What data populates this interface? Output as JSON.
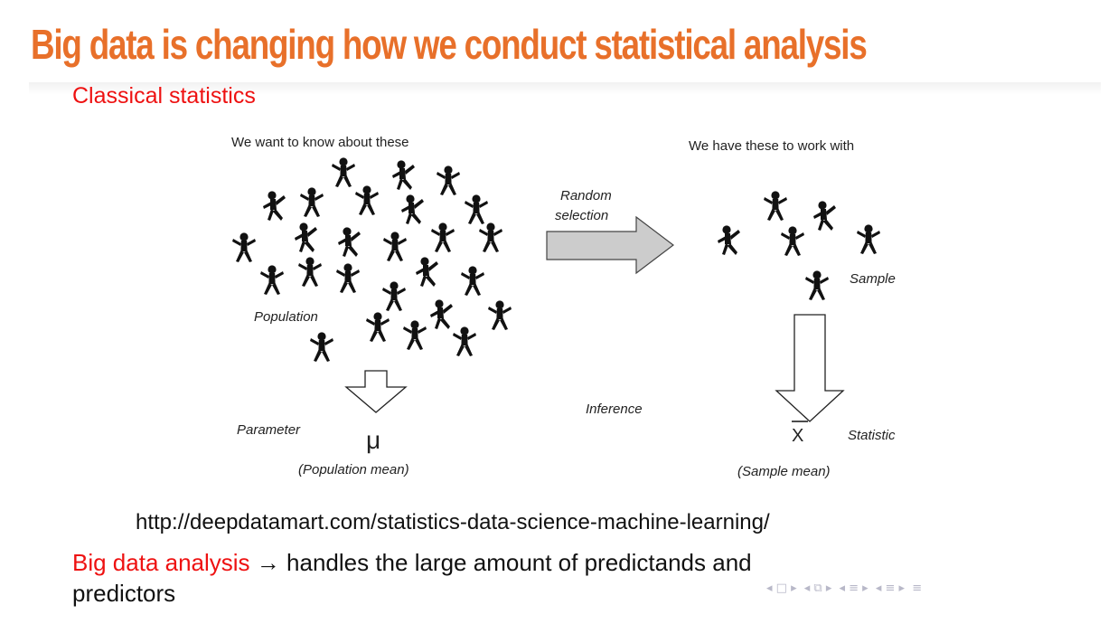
{
  "slide": {
    "title": "Big data is changing how we conduct statistical analysis",
    "subtitle": "Classical statistics",
    "source_url": "http://deepdatamart.com/statistics-data-science-machine-learning/",
    "bottom": {
      "highlight": "Big data analysis",
      "arrow": "→",
      "rest": "handles the large amount of predictands and",
      "continuation": "predictors"
    }
  },
  "diagram": {
    "left_heading": "We want to know about these",
    "right_heading": "We have these to work with",
    "random_line1": "Random",
    "random_line2": "selection",
    "population": "Population",
    "sample": "Sample",
    "parameter": "Parameter",
    "mu": "μ",
    "population_mean": "(Population mean)",
    "inference": "Inference",
    "xbar": "X",
    "statistic": "Statistic",
    "sample_mean": "(Sample mean)"
  },
  "nav_icons": [
    "nav-first-icon",
    "nav-frame-icon",
    "nav-section-icon",
    "nav-subsection-icon",
    "nav-menu-icon"
  ],
  "colors": {
    "title": "#e8702a",
    "accent_red": "#ee1111",
    "arrow_fill": "#cccccc"
  }
}
